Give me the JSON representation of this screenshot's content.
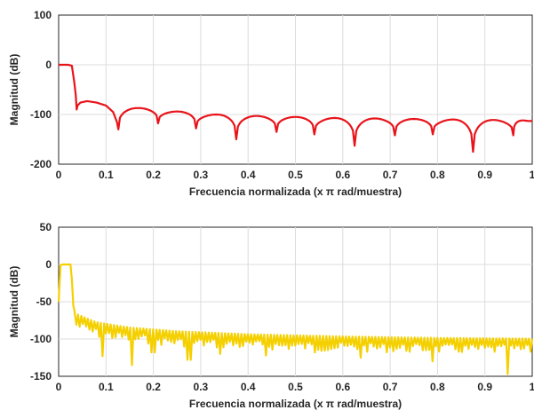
{
  "chart_data": [
    {
      "type": "line",
      "xlabel": "Frecuencia normalizada  (x π rad/muestra)",
      "ylabel": "Magnitud (dB)",
      "xlim": [
        0,
        1
      ],
      "ylim": [
        -200,
        100
      ],
      "xticks": [
        "0",
        "0.1",
        "0.2",
        "0.3",
        "0.4",
        "0.5",
        "0.6",
        "0.7",
        "0.8",
        "0.9",
        "1"
      ],
      "yticks": [
        "100",
        "0",
        "-100",
        "-200"
      ],
      "ytick_values": [
        100,
        0,
        -100,
        -200
      ],
      "grid": true,
      "color": "#e8141b",
      "series": [
        {
          "passband": [
            [
              0,
              0
            ],
            [
              0.02,
              0
            ],
            [
              0.028,
              -2
            ],
            [
              0.033,
              -35
            ],
            [
              0.036,
              -60
            ],
            [
              0.038,
              -90
            ],
            [
              0.04,
              -82
            ],
            [
              0.046,
              -76
            ],
            [
              0.06,
              -73
            ],
            [
              0.08,
              -76
            ],
            [
              0.1,
              -82
            ],
            [
              0.115,
              -95
            ],
            [
              0.123,
              -115
            ],
            [
              0.126,
              -130
            ]
          ],
          "lobes": [
            {
              "x": 0.126,
              "d": -130,
              "p": -87
            },
            {
              "x": 0.21,
              "d": -118,
              "p": -94
            },
            {
              "x": 0.29,
              "d": -128,
              "p": -100
            },
            {
              "x": 0.375,
              "d": -150,
              "p": -103
            },
            {
              "x": 0.46,
              "d": -135,
              "p": -105
            },
            {
              "x": 0.54,
              "d": -140,
              "p": -107
            },
            {
              "x": 0.625,
              "d": -163,
              "p": -108
            },
            {
              "x": 0.71,
              "d": -142,
              "p": -109
            },
            {
              "x": 0.79,
              "d": -140,
              "p": -110
            },
            {
              "x": 0.875,
              "d": -175,
              "p": -111
            },
            {
              "x": 0.96,
              "d": -142,
              "p": -112
            },
            {
              "x": 1.0,
              "d": -113,
              "p": -113
            }
          ]
        }
      ]
    },
    {
      "type": "line",
      "xlabel": "Frecuencia normalizada  (x π rad/muestra)",
      "ylabel": "Magnitud (dB)",
      "xlim": [
        0,
        1
      ],
      "ylim": [
        -150,
        50
      ],
      "xticks": [
        "0",
        "0.1",
        "0.2",
        "0.3",
        "0.4",
        "0.5",
        "0.6",
        "0.7",
        "0.8",
        "0.9",
        "1"
      ],
      "yticks": [
        "50",
        "0",
        "-50",
        "-100",
        "-150"
      ],
      "ytick_values": [
        50,
        0,
        -50,
        -100,
        -150
      ],
      "grid": true,
      "color": "#f5d000",
      "series": [
        {
          "passband": [
            [
              0,
              -50
            ],
            [
              0.004,
              -1
            ],
            [
              0.008,
              0
            ],
            [
              0.025,
              0
            ],
            [
              0.028,
              -20
            ],
            [
              0.031,
              -55
            ],
            [
              0.034,
              -64
            ]
          ],
          "envelope": [
            [
              0.034,
              -68
            ],
            [
              0.08,
              -80
            ],
            [
              0.15,
              -87
            ],
            [
              0.25,
              -92
            ],
            [
              0.4,
              -96
            ],
            [
              0.6,
              -99
            ],
            [
              0.8,
              -101
            ],
            [
              1.0,
              -102
            ]
          ],
          "ripple": 2.5,
          "teeth": 140,
          "deep_notches": [
            [
              0.09,
              -123
            ],
            [
              0.155,
              -135
            ],
            [
              0.2,
              -118
            ],
            [
              0.275,
              -128
            ],
            [
              0.34,
              -120
            ],
            [
              0.44,
              -122
            ],
            [
              0.54,
              -118
            ],
            [
              0.64,
              -125
            ],
            [
              0.79,
              -130
            ],
            [
              0.95,
              -147
            ]
          ]
        }
      ]
    }
  ]
}
